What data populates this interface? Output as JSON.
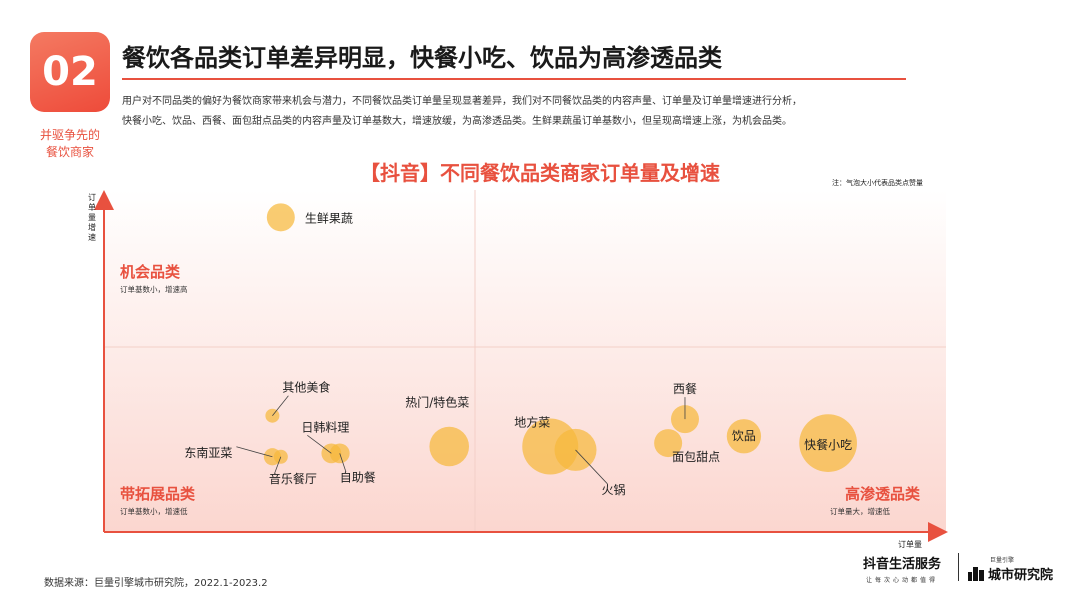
{
  "badge": {
    "number": "02",
    "label_line1": "并驱争先的",
    "label_line2": "餐饮商家"
  },
  "title": "餐饮各品类订单差异明显，快餐小吃、饮品为高渗透品类",
  "intro": {
    "line1": "用户对不同品类的偏好为餐饮商家带来机会与潜力，不同餐饮品类订单量呈现显著差异，我们对不同餐饮品类的内容声量、订单量及订单量增速进行分析，",
    "line2": "快餐小吃、饮品、西餐、面包甜点品类的内容声量及订单基数大，增速放缓，为高渗透品类。生鲜果蔬虽订单基数小，但呈现高增速上涨，为机会品类。"
  },
  "chart_data": {
    "type": "scatter",
    "title": "【抖音】不同餐饮品类商家订单量及增速",
    "note": "注：气泡大小代表品类点赞量",
    "xlabel": "订单量",
    "ylabel": "订单量增速",
    "xlim": [
      0,
      100
    ],
    "ylim": [
      0,
      100
    ],
    "quadrants": {
      "top_left": {
        "label": "机会品类",
        "desc": "订单基数小，增速高"
      },
      "bottom_left": {
        "label": "带拓展品类",
        "desc": "订单基数小，增速低"
      },
      "bottom_right": {
        "label": "高渗透品类",
        "desc": "订单量大，增速低"
      }
    },
    "points": [
      {
        "name": "生鲜果蔬",
        "x": 21,
        "y": 92,
        "size": 4
      },
      {
        "name": "其他美食",
        "x": 20,
        "y": 34,
        "size": 1
      },
      {
        "name": "日韩料理",
        "x": 27,
        "y": 23,
        "size": 2
      },
      {
        "name": "东南亚菜",
        "x": 20,
        "y": 22,
        "size": 1.5
      },
      {
        "name": "音乐餐厅",
        "x": 21,
        "y": 22,
        "size": 1
      },
      {
        "name": "自助餐",
        "x": 28,
        "y": 23,
        "size": 2
      },
      {
        "name": "热门/特色菜",
        "x": 41,
        "y": 25,
        "size": 8
      },
      {
        "name": "地方菜",
        "x": 53,
        "y": 25,
        "size": 16
      },
      {
        "name": "火锅",
        "x": 56,
        "y": 24,
        "size": 9
      },
      {
        "name": "西餐",
        "x": 69,
        "y": 33,
        "size": 4
      },
      {
        "name": "面包甜点",
        "x": 67,
        "y": 26,
        "size": 4
      },
      {
        "name": "饮品",
        "x": 76,
        "y": 28,
        "size": 6
      },
      {
        "name": "快餐小吃",
        "x": 86,
        "y": 26,
        "size": 17
      }
    ]
  },
  "footer": {
    "source": "数据来源：巨量引擎城市研究院，2022.1-2023.2",
    "logo1_name": "抖音生活服务",
    "logo1_tagline": "让每次心动都值得",
    "logo2_small": "巨量引擎",
    "logo2_name": "城市研究院"
  },
  "colors": {
    "accent": "#e8513f",
    "bubble": "#f6b93b",
    "quadrant_bg": "#fde4e0"
  }
}
